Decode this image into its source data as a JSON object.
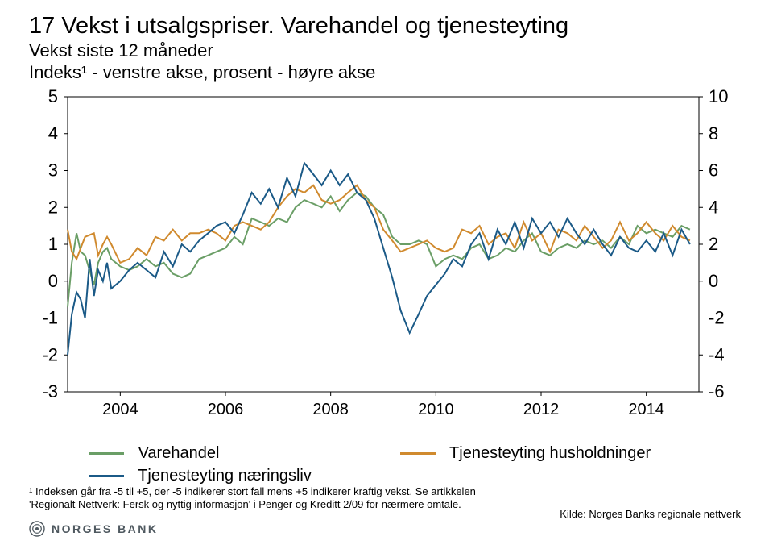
{
  "title": "17  Vekst i utsalgspriser. Varehandel og tjenesteyting",
  "subtitle1": "Vekst siste 12 måneder",
  "subtitle2": "Indeks¹ - venstre akse, prosent - høyre akse",
  "footnote": "¹ Indeksen går fra -5 til +5, der -5 indikerer stort fall mens +5 indikerer kraftig vekst. Se artikkelen 'Regionalt Nettverk: Fersk og nyttig informasjon' i Penger og Kreditt 2/09 for nærmere omtale.",
  "source": "Kilde: Norges Banks regionale nettverk",
  "logo_text": "NORGES BANK",
  "chart": {
    "type": "line",
    "background_color": "#ffffff",
    "border_color": "#000000",
    "leftAxis": {
      "min": -3,
      "max": 5,
      "ticks": [
        -3,
        -2,
        -1,
        0,
        1,
        2,
        3,
        4,
        5
      ]
    },
    "rightAxis": {
      "min": -6,
      "max": 10,
      "ticks": [
        -6,
        -4,
        -2,
        0,
        2,
        4,
        6,
        8,
        10
      ]
    },
    "xAxis": {
      "min": 2003,
      "max": 2015,
      "tickLabels": [
        2004,
        2006,
        2008,
        2010,
        2012,
        2014
      ]
    },
    "legend": [
      {
        "key": "vare",
        "label": "Varehandel"
      },
      {
        "key": "hush",
        "label": "Tjenesteyting husholdninger"
      },
      {
        "key": "naer",
        "label": "Tjenesteyting næringsliv"
      }
    ],
    "series": {
      "vare": {
        "color": "#6a9e66",
        "width": 2,
        "data": [
          [
            2003.0,
            -0.7
          ],
          [
            2003.08,
            0.5
          ],
          [
            2003.17,
            1.3
          ],
          [
            2003.25,
            0.8
          ],
          [
            2003.33,
            0.7
          ],
          [
            2003.5,
            -0.1
          ],
          [
            2003.58,
            0.5
          ],
          [
            2003.67,
            0.8
          ],
          [
            2003.75,
            0.9
          ],
          [
            2003.83,
            0.6
          ],
          [
            2004.0,
            0.4
          ],
          [
            2004.17,
            0.3
          ],
          [
            2004.33,
            0.4
          ],
          [
            2004.5,
            0.6
          ],
          [
            2004.67,
            0.4
          ],
          [
            2004.83,
            0.5
          ],
          [
            2005.0,
            0.2
          ],
          [
            2005.17,
            0.1
          ],
          [
            2005.33,
            0.2
          ],
          [
            2005.5,
            0.6
          ],
          [
            2005.67,
            0.7
          ],
          [
            2005.83,
            0.8
          ],
          [
            2006.0,
            0.9
          ],
          [
            2006.17,
            1.2
          ],
          [
            2006.33,
            1.0
          ],
          [
            2006.5,
            1.7
          ],
          [
            2006.67,
            1.6
          ],
          [
            2006.83,
            1.5
          ],
          [
            2007.0,
            1.7
          ],
          [
            2007.17,
            1.6
          ],
          [
            2007.33,
            2.0
          ],
          [
            2007.5,
            2.2
          ],
          [
            2007.67,
            2.1
          ],
          [
            2007.83,
            2.0
          ],
          [
            2008.0,
            2.3
          ],
          [
            2008.17,
            1.9
          ],
          [
            2008.33,
            2.2
          ],
          [
            2008.5,
            2.4
          ],
          [
            2008.67,
            2.3
          ],
          [
            2008.83,
            2.0
          ],
          [
            2009.0,
            1.8
          ],
          [
            2009.17,
            1.2
          ],
          [
            2009.33,
            1.0
          ],
          [
            2009.5,
            1.0
          ],
          [
            2009.67,
            1.1
          ],
          [
            2009.83,
            1.0
          ],
          [
            2010.0,
            0.4
          ],
          [
            2010.17,
            0.6
          ],
          [
            2010.33,
            0.7
          ],
          [
            2010.5,
            0.6
          ],
          [
            2010.67,
            0.9
          ],
          [
            2010.83,
            1.0
          ],
          [
            2011.0,
            0.6
          ],
          [
            2011.17,
            0.7
          ],
          [
            2011.33,
            0.9
          ],
          [
            2011.5,
            0.8
          ],
          [
            2011.67,
            1.1
          ],
          [
            2011.83,
            1.3
          ],
          [
            2012.0,
            0.8
          ],
          [
            2012.17,
            0.7
          ],
          [
            2012.33,
            0.9
          ],
          [
            2012.5,
            1.0
          ],
          [
            2012.67,
            0.9
          ],
          [
            2012.83,
            1.1
          ],
          [
            2013.0,
            1.0
          ],
          [
            2013.17,
            1.1
          ],
          [
            2013.33,
            0.9
          ],
          [
            2013.5,
            1.2
          ],
          [
            2013.67,
            1.0
          ],
          [
            2013.83,
            1.5
          ],
          [
            2014.0,
            1.3
          ],
          [
            2014.17,
            1.4
          ],
          [
            2014.33,
            1.3
          ],
          [
            2014.5,
            1.2
          ],
          [
            2014.67,
            1.5
          ],
          [
            2014.83,
            1.4
          ]
        ]
      },
      "hush": {
        "color": "#d08a2e",
        "width": 2,
        "data": [
          [
            2003.0,
            1.4
          ],
          [
            2003.08,
            0.8
          ],
          [
            2003.17,
            0.6
          ],
          [
            2003.25,
            0.9
          ],
          [
            2003.33,
            1.2
          ],
          [
            2003.5,
            1.3
          ],
          [
            2003.58,
            0.7
          ],
          [
            2003.67,
            1.0
          ],
          [
            2003.75,
            1.2
          ],
          [
            2003.83,
            1.0
          ],
          [
            2004.0,
            0.5
          ],
          [
            2004.17,
            0.6
          ],
          [
            2004.33,
            0.9
          ],
          [
            2004.5,
            0.7
          ],
          [
            2004.67,
            1.2
          ],
          [
            2004.83,
            1.1
          ],
          [
            2005.0,
            1.4
          ],
          [
            2005.17,
            1.1
          ],
          [
            2005.33,
            1.3
          ],
          [
            2005.5,
            1.3
          ],
          [
            2005.67,
            1.4
          ],
          [
            2005.83,
            1.3
          ],
          [
            2006.0,
            1.1
          ],
          [
            2006.17,
            1.5
          ],
          [
            2006.33,
            1.6
          ],
          [
            2006.5,
            1.5
          ],
          [
            2006.67,
            1.4
          ],
          [
            2006.83,
            1.6
          ],
          [
            2007.0,
            2.0
          ],
          [
            2007.17,
            2.3
          ],
          [
            2007.33,
            2.5
          ],
          [
            2007.5,
            2.4
          ],
          [
            2007.67,
            2.6
          ],
          [
            2007.83,
            2.2
          ],
          [
            2008.0,
            2.1
          ],
          [
            2008.17,
            2.2
          ],
          [
            2008.33,
            2.4
          ],
          [
            2008.5,
            2.6
          ],
          [
            2008.67,
            2.2
          ],
          [
            2008.83,
            2.0
          ],
          [
            2009.0,
            1.4
          ],
          [
            2009.17,
            1.1
          ],
          [
            2009.33,
            0.8
          ],
          [
            2009.5,
            0.9
          ],
          [
            2009.67,
            1.0
          ],
          [
            2009.83,
            1.1
          ],
          [
            2010.0,
            0.9
          ],
          [
            2010.17,
            0.8
          ],
          [
            2010.33,
            0.9
          ],
          [
            2010.5,
            1.4
          ],
          [
            2010.67,
            1.3
          ],
          [
            2010.83,
            1.5
          ],
          [
            2011.0,
            1.0
          ],
          [
            2011.17,
            1.2
          ],
          [
            2011.33,
            1.3
          ],
          [
            2011.5,
            0.9
          ],
          [
            2011.67,
            1.6
          ],
          [
            2011.83,
            1.1
          ],
          [
            2012.0,
            1.3
          ],
          [
            2012.17,
            0.8
          ],
          [
            2012.33,
            1.4
          ],
          [
            2012.5,
            1.3
          ],
          [
            2012.67,
            1.1
          ],
          [
            2012.83,
            1.5
          ],
          [
            2013.0,
            1.2
          ],
          [
            2013.17,
            0.9
          ],
          [
            2013.33,
            1.1
          ],
          [
            2013.5,
            1.6
          ],
          [
            2013.67,
            1.1
          ],
          [
            2013.83,
            1.3
          ],
          [
            2014.0,
            1.6
          ],
          [
            2014.17,
            1.3
          ],
          [
            2014.33,
            1.1
          ],
          [
            2014.5,
            1.5
          ],
          [
            2014.67,
            1.2
          ],
          [
            2014.83,
            1.1
          ]
        ]
      },
      "naer": {
        "color": "#1b5a87",
        "width": 2,
        "data": [
          [
            2003.0,
            -2.0
          ],
          [
            2003.08,
            -0.9
          ],
          [
            2003.17,
            -0.3
          ],
          [
            2003.25,
            -0.5
          ],
          [
            2003.33,
            -1.0
          ],
          [
            2003.42,
            0.6
          ],
          [
            2003.5,
            -0.4
          ],
          [
            2003.58,
            0.3
          ],
          [
            2003.67,
            0.0
          ],
          [
            2003.75,
            0.5
          ],
          [
            2003.83,
            -0.2
          ],
          [
            2004.0,
            0.0
          ],
          [
            2004.17,
            0.3
          ],
          [
            2004.33,
            0.5
          ],
          [
            2004.5,
            0.3
          ],
          [
            2004.67,
            0.1
          ],
          [
            2004.83,
            0.8
          ],
          [
            2005.0,
            0.4
          ],
          [
            2005.17,
            1.0
          ],
          [
            2005.33,
            0.8
          ],
          [
            2005.5,
            1.1
          ],
          [
            2005.67,
            1.3
          ],
          [
            2005.83,
            1.5
          ],
          [
            2006.0,
            1.6
          ],
          [
            2006.17,
            1.3
          ],
          [
            2006.33,
            1.8
          ],
          [
            2006.5,
            2.4
          ],
          [
            2006.67,
            2.1
          ],
          [
            2006.83,
            2.5
          ],
          [
            2007.0,
            2.0
          ],
          [
            2007.17,
            2.8
          ],
          [
            2007.33,
            2.3
          ],
          [
            2007.5,
            3.2
          ],
          [
            2007.67,
            2.9
          ],
          [
            2007.83,
            2.6
          ],
          [
            2008.0,
            3.0
          ],
          [
            2008.17,
            2.6
          ],
          [
            2008.33,
            2.9
          ],
          [
            2008.5,
            2.4
          ],
          [
            2008.67,
            2.2
          ],
          [
            2008.83,
            1.7
          ],
          [
            2009.0,
            0.9
          ],
          [
            2009.17,
            0.1
          ],
          [
            2009.33,
            -0.8
          ],
          [
            2009.5,
            -1.4
          ],
          [
            2009.67,
            -0.9
          ],
          [
            2009.83,
            -0.4
          ],
          [
            2010.0,
            -0.1
          ],
          [
            2010.17,
            0.2
          ],
          [
            2010.33,
            0.6
          ],
          [
            2010.5,
            0.4
          ],
          [
            2010.67,
            1.0
          ],
          [
            2010.83,
            1.3
          ],
          [
            2011.0,
            0.6
          ],
          [
            2011.17,
            1.4
          ],
          [
            2011.33,
            1.0
          ],
          [
            2011.5,
            1.6
          ],
          [
            2011.67,
            0.9
          ],
          [
            2011.83,
            1.7
          ],
          [
            2012.0,
            1.3
          ],
          [
            2012.17,
            1.6
          ],
          [
            2012.33,
            1.2
          ],
          [
            2012.5,
            1.7
          ],
          [
            2012.67,
            1.3
          ],
          [
            2012.83,
            1.0
          ],
          [
            2013.0,
            1.4
          ],
          [
            2013.17,
            1.0
          ],
          [
            2013.33,
            0.7
          ],
          [
            2013.5,
            1.2
          ],
          [
            2013.67,
            0.9
          ],
          [
            2013.83,
            0.8
          ],
          [
            2014.0,
            1.1
          ],
          [
            2014.17,
            0.8
          ],
          [
            2014.33,
            1.3
          ],
          [
            2014.5,
            0.7
          ],
          [
            2014.67,
            1.4
          ],
          [
            2014.83,
            1.0
          ]
        ]
      }
    }
  }
}
